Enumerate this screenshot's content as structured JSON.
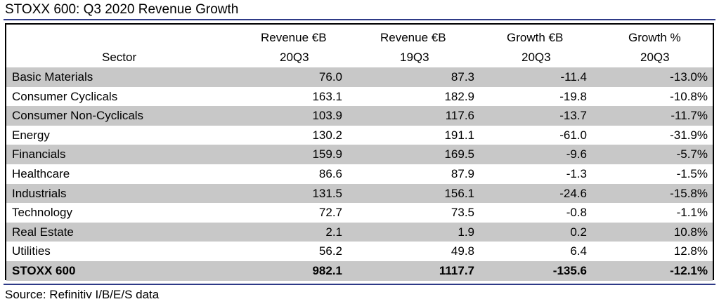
{
  "title": "STOXX 600: Q3 2020 Revenue Growth",
  "source": "Source: Refinitiv I/B/E/S data",
  "colors": {
    "rule": "#2e3a87",
    "row_shade": "#c8c8c8"
  },
  "chart_data": {
    "type": "table",
    "title": "STOXX 600: Q3 2020 Revenue Growth",
    "columns": [
      {
        "line1": "",
        "line2": "Sector"
      },
      {
        "line1": "Revenue €B",
        "line2": "20Q3"
      },
      {
        "line1": "Revenue €B",
        "line2": "19Q3"
      },
      {
        "line1": "Growth €B",
        "line2": "20Q3"
      },
      {
        "line1": "Growth %",
        "line2": "20Q3"
      }
    ],
    "rows": [
      {
        "sector": "Basic Materials",
        "rev_20q3": "76.0",
        "rev_19q3": "87.3",
        "growth_eur": "-11.4",
        "growth_pct": "-13.0%"
      },
      {
        "sector": "Consumer Cyclicals",
        "rev_20q3": "163.1",
        "rev_19q3": "182.9",
        "growth_eur": "-19.8",
        "growth_pct": "-10.8%"
      },
      {
        "sector": "Consumer Non-Cyclicals",
        "rev_20q3": "103.9",
        "rev_19q3": "117.6",
        "growth_eur": "-13.7",
        "growth_pct": "-11.7%"
      },
      {
        "sector": "Energy",
        "rev_20q3": "130.2",
        "rev_19q3": "191.1",
        "growth_eur": "-61.0",
        "growth_pct": "-31.9%"
      },
      {
        "sector": "Financials",
        "rev_20q3": "159.9",
        "rev_19q3": "169.5",
        "growth_eur": "-9.6",
        "growth_pct": "-5.7%"
      },
      {
        "sector": "Healthcare",
        "rev_20q3": "86.6",
        "rev_19q3": "87.9",
        "growth_eur": "-1.3",
        "growth_pct": "-1.5%"
      },
      {
        "sector": "Industrials",
        "rev_20q3": "131.5",
        "rev_19q3": "156.1",
        "growth_eur": "-24.6",
        "growth_pct": "-15.8%"
      },
      {
        "sector": "Technology",
        "rev_20q3": "72.7",
        "rev_19q3": "73.5",
        "growth_eur": "-0.8",
        "growth_pct": "-1.1%"
      },
      {
        "sector": "Real Estate",
        "rev_20q3": "2.1",
        "rev_19q3": "1.9",
        "growth_eur": "0.2",
        "growth_pct": "10.8%"
      },
      {
        "sector": "Utilities",
        "rev_20q3": "56.2",
        "rev_19q3": "49.8",
        "growth_eur": "6.4",
        "growth_pct": "12.8%"
      }
    ],
    "total": {
      "sector": "STOXX 600",
      "rev_20q3": "982.1",
      "rev_19q3": "1117.7",
      "growth_eur": "-135.6",
      "growth_pct": "-12.1%"
    }
  }
}
